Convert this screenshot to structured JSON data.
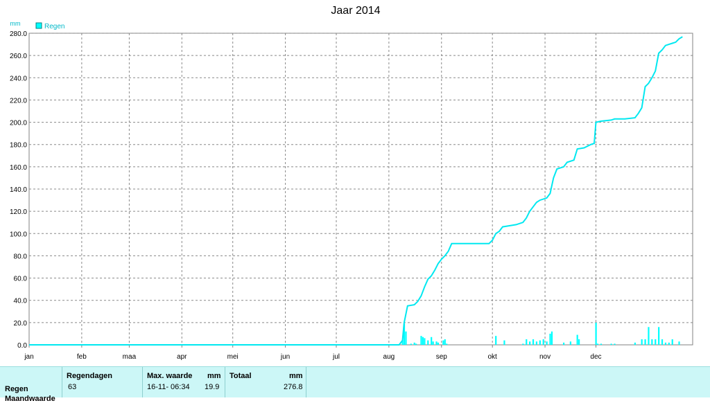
{
  "title": "Jaar 2014",
  "unit": "mm",
  "legend": {
    "label": "Regen",
    "color": "#00ffff"
  },
  "colors": {
    "line": "#00e8f0",
    "bars": "#00ffff",
    "grid": "#888888",
    "axis": "#808080"
  },
  "chart_data": {
    "type": "line",
    "title": "Jaar 2014",
    "ylabel": "mm",
    "xlabel": "",
    "ylim": [
      0,
      280
    ],
    "y_ticks": [
      "0.0",
      "20.0",
      "40.0",
      "60.0",
      "80.0",
      "100.0",
      "120.0",
      "140.0",
      "160.0",
      "180.0",
      "200.0",
      "220.0",
      "240.0",
      "260.0",
      "280.0"
    ],
    "x_ticks": [
      "jan",
      "feb",
      "maa",
      "apr",
      "mei",
      "jun",
      "jul",
      "aug",
      "sep",
      "okt",
      "nov",
      "dec"
    ],
    "x_unit": "day of year",
    "grid": true,
    "legend_position": "top-left",
    "series": [
      {
        "name": "Regen",
        "style": "cumulative-line",
        "points": [
          [
            1,
            0
          ],
          [
            219,
            0
          ],
          [
            221,
            4
          ],
          [
            222,
            20
          ],
          [
            224,
            35
          ],
          [
            228,
            36
          ],
          [
            230,
            39
          ],
          [
            232,
            44
          ],
          [
            234,
            52
          ],
          [
            236,
            59
          ],
          [
            238,
            62
          ],
          [
            240,
            67
          ],
          [
            242,
            73
          ],
          [
            244,
            77
          ],
          [
            246,
            80
          ],
          [
            248,
            84
          ],
          [
            250,
            91
          ],
          [
            256,
            91
          ],
          [
            262,
            91
          ],
          [
            268,
            91
          ],
          [
            272,
            91
          ],
          [
            274,
            94
          ],
          [
            276,
            100
          ],
          [
            278,
            102
          ],
          [
            280,
            106
          ],
          [
            284,
            107
          ],
          [
            288,
            108
          ],
          [
            292,
            110
          ],
          [
            294,
            114
          ],
          [
            296,
            120
          ],
          [
            298,
            124
          ],
          [
            300,
            128
          ],
          [
            302,
            130
          ],
          [
            306,
            132
          ],
          [
            308,
            136
          ],
          [
            310,
            150
          ],
          [
            312,
            158
          ],
          [
            316,
            160
          ],
          [
            318,
            164
          ],
          [
            322,
            166
          ],
          [
            324,
            176
          ],
          [
            328,
            177
          ],
          [
            332,
            180
          ],
          [
            334,
            181
          ],
          [
            335,
            200
          ],
          [
            338,
            201
          ],
          [
            344,
            202
          ],
          [
            346,
            203
          ],
          [
            352,
            203
          ],
          [
            358,
            204
          ],
          [
            360,
            208
          ],
          [
            362,
            213
          ],
          [
            364,
            232
          ],
          [
            366,
            235
          ],
          [
            368,
            240
          ],
          [
            370,
            246
          ],
          [
            372,
            262
          ],
          [
            374,
            265
          ],
          [
            376,
            269
          ],
          [
            378,
            270
          ],
          [
            380,
            271
          ],
          [
            382,
            272
          ],
          [
            384,
            275
          ],
          [
            386,
            276.8
          ]
        ]
      },
      {
        "name": "",
        "style": "daily-bars",
        "points": [
          [
            221,
            4
          ],
          [
            222,
            19
          ],
          [
            223,
            12
          ],
          [
            226,
            1
          ],
          [
            228,
            2
          ],
          [
            229,
            1
          ],
          [
            232,
            8
          ],
          [
            233,
            7
          ],
          [
            234,
            6
          ],
          [
            236,
            4
          ],
          [
            238,
            7
          ],
          [
            239,
            3
          ],
          [
            241,
            3
          ],
          [
            242,
            2
          ],
          [
            245,
            4
          ],
          [
            246,
            5
          ],
          [
            247,
            1
          ],
          [
            276,
            8
          ],
          [
            281,
            4
          ],
          [
            292,
            1
          ],
          [
            294,
            5
          ],
          [
            296,
            3
          ],
          [
            298,
            5
          ],
          [
            300,
            3
          ],
          [
            302,
            4
          ],
          [
            304,
            5
          ],
          [
            306,
            3
          ],
          [
            308,
            10
          ],
          [
            309,
            12
          ],
          [
            316,
            2
          ],
          [
            320,
            3
          ],
          [
            324,
            9
          ],
          [
            325,
            5
          ],
          [
            335,
            19.9
          ],
          [
            336,
            1
          ],
          [
            338,
            1
          ],
          [
            344,
            1
          ],
          [
            346,
            1
          ],
          [
            358,
            2
          ],
          [
            362,
            5
          ],
          [
            364,
            5
          ],
          [
            366,
            16
          ],
          [
            368,
            5
          ],
          [
            370,
            5
          ],
          [
            372,
            16
          ],
          [
            374,
            5
          ],
          [
            376,
            2
          ],
          [
            378,
            2
          ],
          [
            380,
            5
          ],
          [
            384,
            3
          ]
        ]
      }
    ]
  },
  "summary": {
    "row_label": "Regen",
    "row_label2": "Maandwaarde",
    "headers": {
      "regendagen": "Regendagen",
      "max_waarde": "Max. waarde",
      "max_unit": "mm",
      "totaal": "Totaal",
      "totaal_unit": "mm"
    },
    "values": {
      "regendagen": "63",
      "max_date": "16-11- 06:34",
      "max_value": "19.9",
      "totaal": "276.8"
    }
  }
}
